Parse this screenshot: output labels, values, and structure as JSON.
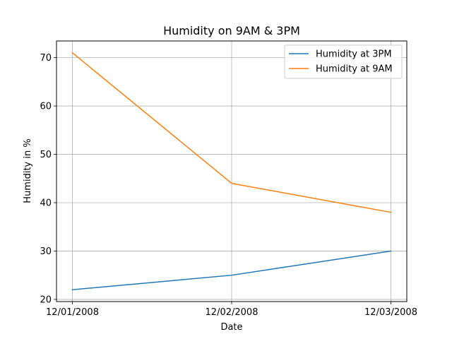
{
  "chart_data": {
    "type": "line",
    "title": "Humidity on 9AM & 3PM",
    "xlabel": "Date",
    "ylabel": "Humidity in %",
    "categories": [
      "12/01/2008",
      "12/02/2008",
      "12/03/2008"
    ],
    "series": [
      {
        "name": "Humidity at 3PM",
        "values": [
          22,
          25,
          30
        ],
        "color": "#1f77b4"
      },
      {
        "name": "Humidity at 9AM",
        "values": [
          71,
          44,
          38
        ],
        "color": "#ff7f0e"
      }
    ],
    "ylim": [
      19.55,
      73.45
    ],
    "yticks": [
      20,
      30,
      40,
      50,
      60,
      70
    ],
    "grid": true,
    "legend_position": "top-right"
  }
}
